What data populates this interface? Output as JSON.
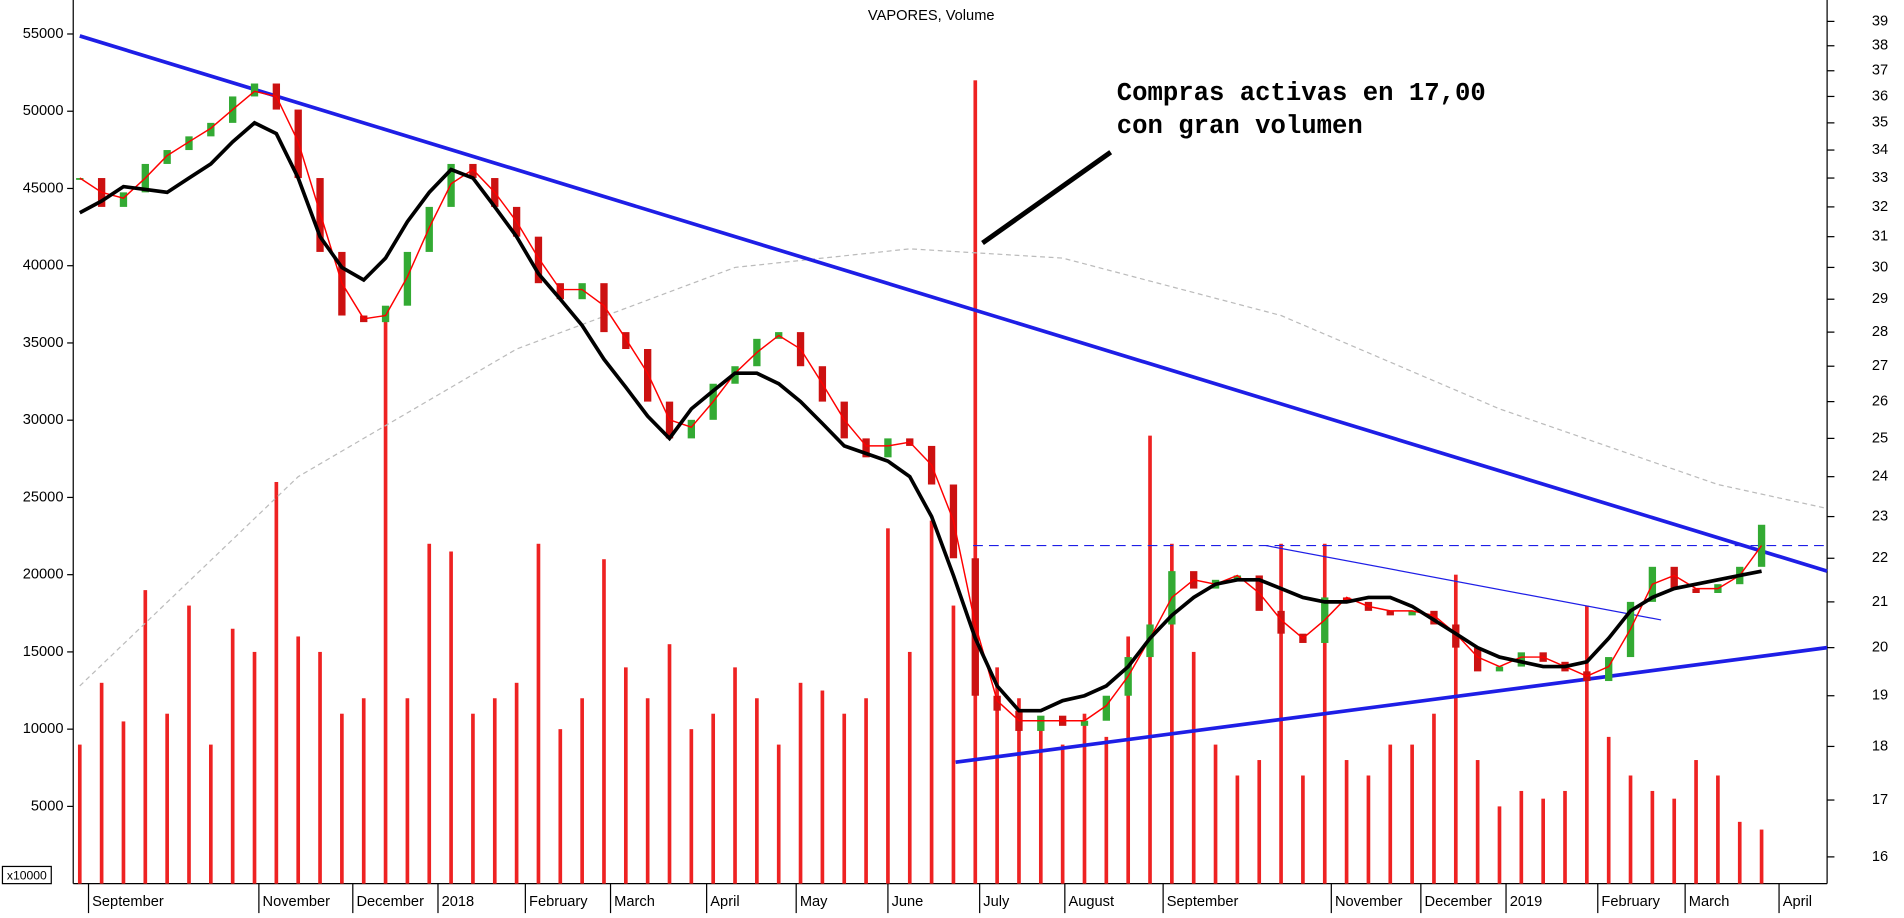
{
  "chart_data": {
    "type": "stock",
    "title": "VAPORES, Volume",
    "volume_unit": "x10000",
    "annotation": [
      "Compras activas en 17,00",
      "con gran volumen"
    ],
    "x": [
      0,
      1,
      2,
      3,
      4,
      5,
      6,
      7,
      8,
      9,
      10,
      11,
      12,
      13,
      14,
      15,
      16,
      17,
      18,
      19,
      20,
      21,
      22,
      23,
      24,
      25,
      26,
      27,
      28,
      29,
      30,
      31,
      32,
      33,
      34,
      35,
      36,
      37,
      38,
      39,
      40,
      41,
      42,
      43,
      44,
      45,
      46,
      47,
      48,
      49,
      50,
      51,
      52,
      53,
      54,
      55,
      56,
      57,
      58,
      59,
      60,
      61,
      62,
      63,
      64,
      65,
      66,
      67,
      68,
      69,
      70,
      71,
      72,
      73,
      74,
      75,
      76,
      77
    ],
    "xlim": [
      -0.3,
      80
    ],
    "xticks": [
      {
        "value": 0.4,
        "label": "September"
      },
      {
        "value": 8.2,
        "label": "November"
      },
      {
        "value": 12.5,
        "label": "December"
      },
      {
        "value": 16.4,
        "label": "2018"
      },
      {
        "value": 20.4,
        "label": "February"
      },
      {
        "value": 24.3,
        "label": "March"
      },
      {
        "value": 28.7,
        "label": "April"
      },
      {
        "value": 32.8,
        "label": "May"
      },
      {
        "value": 37,
        "label": "June"
      },
      {
        "value": 41.2,
        "label": "July"
      },
      {
        "value": 45.1,
        "label": "August"
      },
      {
        "value": 49.6,
        "label": "September"
      },
      {
        "value": 57.3,
        "label": "November"
      },
      {
        "value": 61.4,
        "label": "December"
      },
      {
        "value": 65.3,
        "label": "2019"
      },
      {
        "value": 69.5,
        "label": "February"
      },
      {
        "value": 73.5,
        "label": "March"
      },
      {
        "value": 77.8,
        "label": "April"
      }
    ],
    "ylim": [
      0,
      57200
    ],
    "yticks": [
      5000,
      10000,
      15000,
      20000,
      25000,
      30000,
      35000,
      40000,
      45000,
      50000,
      55000
    ],
    "y2lim": [
      15.55,
      39.9
    ],
    "y2_log": true,
    "y2ticks": [
      16,
      17,
      18,
      19,
      20,
      21,
      22,
      23,
      24,
      25,
      26,
      27,
      28,
      29,
      30,
      31,
      32,
      33,
      34,
      35,
      36,
      37,
      38,
      39
    ],
    "volume": {
      "color": "#ee2222",
      "values": [
        9000,
        13000,
        10500,
        19000,
        11000,
        18000,
        9000,
        16500,
        15000,
        26000,
        16000,
        15000,
        11000,
        12000,
        37000,
        12000,
        22000,
        21500,
        11000,
        12000,
        13000,
        22000,
        10000,
        12000,
        21000,
        14000,
        12000,
        15500,
        10000,
        11000,
        14000,
        12000,
        9000,
        13000,
        12500,
        11000,
        12000,
        23000,
        15000,
        23500,
        18000,
        52000,
        14000,
        12000,
        10000,
        9000,
        11000,
        9500,
        16000,
        29000,
        22000,
        15000,
        9000,
        7000,
        8000,
        22000,
        7000,
        22000,
        8000,
        7000,
        9000,
        9000,
        11000,
        20000,
        8000,
        5000,
        6000,
        5500,
        6000,
        18000,
        9500,
        7000,
        6000,
        5500,
        8000,
        7000,
        4000,
        3500
      ]
    },
    "price": {
      "axis": "y2",
      "up_color": "#33aa33",
      "down_color": "#cc1111",
      "values": [
        33,
        32,
        32.5,
        33.5,
        34,
        34.5,
        35,
        36,
        36.5,
        35.5,
        33,
        30.5,
        28.5,
        28.3,
        28.8,
        30.5,
        32,
        33.5,
        33,
        32,
        31,
        29.5,
        29,
        29.5,
        28,
        27.5,
        26,
        25,
        25.5,
        26.5,
        27,
        27.8,
        28,
        27,
        26,
        25,
        24.5,
        25,
        24.8,
        23.8,
        22,
        19,
        18.7,
        18.3,
        18.6,
        18.4,
        18.5,
        19,
        19.8,
        20.5,
        21.7,
        21.3,
        21.5,
        21.6,
        20.8,
        20.3,
        20.1,
        21.1,
        21.0,
        20.8,
        20.7,
        20.8,
        20.5,
        20.0,
        19.5,
        19.6,
        19.9,
        19.7,
        19.5,
        19.3,
        19.8,
        21.0,
        21.8,
        21.3,
        21.2,
        21.4,
        21.8,
        22.8
      ]
    },
    "series": [
      {
        "axis": "y2",
        "color": "#ff0000",
        "width": 1.2,
        "values": [
          33,
          32.5,
          32.3,
          33,
          33.8,
          34.3,
          34.8,
          35.5,
          36.2,
          36,
          34.3,
          31.8,
          29.5,
          28.4,
          28.5,
          29.7,
          31.3,
          32.8,
          33.3,
          32.5,
          31.5,
          30.3,
          29.3,
          29.3,
          28.8,
          27.8,
          26.8,
          25.5,
          25.3,
          26,
          26.8,
          27.4,
          27.9,
          27.5,
          26.5,
          25.5,
          24.8,
          24.8,
          24.9,
          24.3,
          22.9,
          20.5,
          18.9,
          18.5,
          18.5,
          18.5,
          18.5,
          18.8,
          19.4,
          20.2,
          21.1,
          21.5,
          21.4,
          21.6,
          21.2,
          20.6,
          20.2,
          20.6,
          21.1,
          20.9,
          20.8,
          20.8,
          20.7,
          20.3,
          19.8,
          19.6,
          19.8,
          19.8,
          19.6,
          19.4,
          19.6,
          20.4,
          21.4,
          21.6,
          21.3,
          21.3,
          21.6,
          22.3
        ]
      },
      {
        "axis": "y2",
        "color": "#000000",
        "width": 3,
        "values": [
          31.8,
          32.2,
          32.7,
          32.6,
          32.5,
          33,
          33.5,
          34.3,
          35,
          34.6,
          33,
          31,
          30,
          29.6,
          30.3,
          31.5,
          32.5,
          33.3,
          33,
          32,
          31,
          29.8,
          29,
          28.2,
          27.2,
          26.4,
          25.6,
          25,
          25.8,
          26.3,
          26.8,
          26.8,
          26.5,
          26,
          25.4,
          24.8,
          24.6,
          24.4,
          24,
          23,
          21.6,
          20.2,
          19.2,
          18.7,
          18.7,
          18.9,
          19,
          19.2,
          19.6,
          20.2,
          20.7,
          21.1,
          21.4,
          21.5,
          21.5,
          21.3,
          21.1,
          21,
          21,
          21.1,
          21.1,
          20.9,
          20.6,
          20.3,
          20,
          19.8,
          19.7,
          19.6,
          19.6,
          19.7,
          20.2,
          20.8,
          21.1,
          21.3,
          21.4,
          21.5,
          21.6,
          21.7
        ]
      }
    ],
    "lines": [
      {
        "x": [
          0,
          10,
          20,
          30,
          38,
          45,
          55,
          65,
          75,
          80
        ],
        "values": [
          19.2,
          24,
          27.5,
          30,
          30.6,
          30.3,
          28.5,
          25.8,
          23.8,
          23.2
        ],
        "color": "#bbbbbb",
        "width": 1,
        "dash": "4 3"
      },
      {
        "x": [
          0,
          80
        ],
        "values": [
          38.4,
          21.7
        ],
        "color": "#1e1ee6",
        "width": 3
      },
      {
        "x": [
          40.1,
          80
        ],
        "values": [
          17.7,
          20.0
        ],
        "color": "#1e1ee6",
        "width": 3
      },
      {
        "x": [
          40.9,
          80
        ],
        "values": [
          22.3,
          22.3
        ],
        "color": "#1e1ee6",
        "width": 1,
        "dash": "8 5"
      },
      {
        "x": [
          54.3,
          72.4
        ],
        "values": [
          22.3,
          20.6
        ],
        "color": "#1e1ee6",
        "width": 1
      }
    ]
  }
}
